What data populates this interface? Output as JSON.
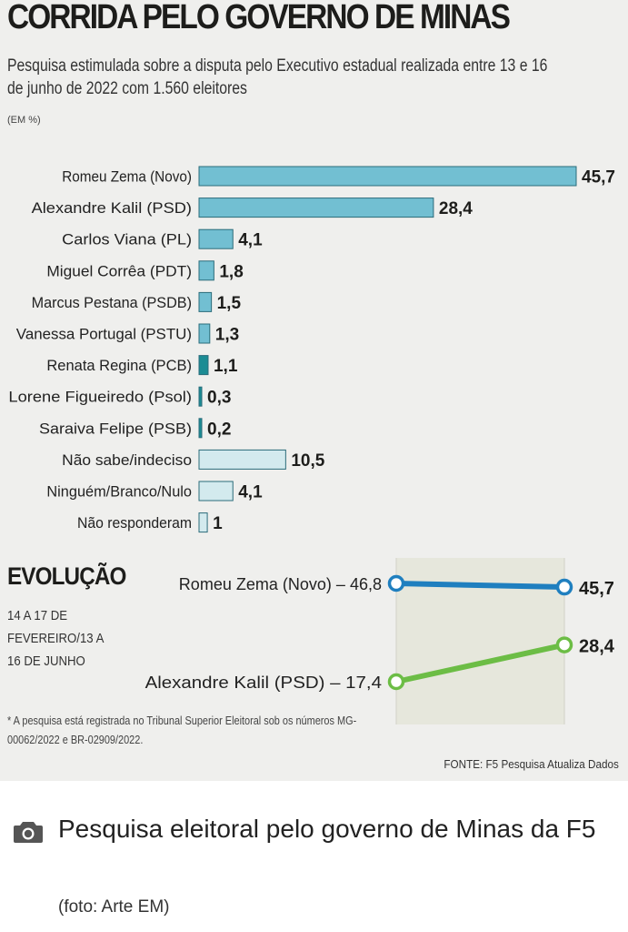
{
  "graphic": {
    "title": "CORRIDA PELO GOVERNO DE MINAS",
    "subtitle": "Pesquisa estimulada sobre a disputa pelo Executivo estadual realizada entre 13 e 16 de junho de 2022 com 1.560 eleitores",
    "unit": "(EM %)",
    "evolution_title": "EVOLUÇÃO",
    "evolution_period": "14 A 17 DE\nFEVEREIRO/13 A\n16 DE JUNHO",
    "footnote": "* A pesquisa está registrada no Tribunal Superior Eleitoral sob os números MG-00062/2022 e BR-02909/2022.",
    "source": "FONTE: F5 Pesquisa Atualiza Dados"
  },
  "chart_data": [
    {
      "type": "bar",
      "orientation": "horizontal",
      "categories": [
        "Romeu Zema (Novo)",
        "Alexandre Kalil (PSD)",
        "Carlos Viana (PL)",
        "Miguel Corrêa (PDT)",
        "Marcus Pestana (PSDB)",
        "Vanessa Portugal (PSTU)",
        "Renata Regina (PCB)",
        "Lorene Figueiredo (Psol)",
        "Saraiva Felipe (PSB)",
        "Não sabe/indeciso",
        "Ninguém/Branco/Nulo",
        "Não responderam"
      ],
      "values": [
        45.7,
        28.4,
        4.1,
        1.8,
        1.5,
        1.3,
        1.1,
        0.3,
        0.2,
        10.5,
        4.1,
        1
      ],
      "value_labels": [
        "45,7",
        "28,4",
        "4,1",
        "1,8",
        "1,5",
        "1,3",
        "1,1",
        "0,3",
        "0,2",
        "10,5",
        "4,1",
        "1"
      ],
      "colors": [
        "#72bfd2",
        "#72bfd2",
        "#72bfd2",
        "#72bfd2",
        "#72bfd2",
        "#72bfd2",
        "#1b8c94",
        "#1b8c94",
        "#1b8c94",
        "#d3eaee",
        "#d3eaee",
        "#d3eaee"
      ]
    },
    {
      "type": "line",
      "series": [
        {
          "name": "Romeu Zema (Novo)",
          "values": [
            46.8,
            45.7
          ],
          "start_label": "Romeu Zema (Novo) – 46,8",
          "end_label": "45,7",
          "color": "#1f7fbf"
        },
        {
          "name": "Alexandre Kalil (PSD)",
          "values": [
            17.4,
            28.4
          ],
          "start_label": "Alexandre Kalil (PSD) – 17,4",
          "end_label": "28,4",
          "color": "#6cbd45"
        }
      ]
    }
  ],
  "caption": {
    "icon": "camera-icon",
    "text": "Pesquisa eleitoral pelo governo de Minas da F5",
    "credit": "(foto: Arte EM)"
  }
}
